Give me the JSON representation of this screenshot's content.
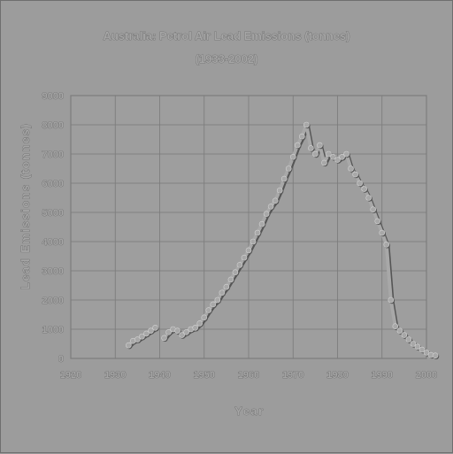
{
  "chart_data": {
    "type": "line",
    "title": "Australia: Petrol Air Lead Emissions (tonnes)",
    "subtitle": "(1933-2002)",
    "xlabel": "Year",
    "ylabel": "Lead Emissions (tonnes)",
    "xlim": [
      1920,
      2000
    ],
    "ylim": [
      0,
      9000
    ],
    "x_ticks": [
      "1920",
      "1930",
      "1940",
      "1950",
      "1960",
      "1970",
      "1980",
      "1990",
      "2000"
    ],
    "y_ticks": [
      "0",
      "1000",
      "2000",
      "3000",
      "4000",
      "5000",
      "6000",
      "7000",
      "8000",
      "9000"
    ],
    "grid": true,
    "legend": "none",
    "series": [
      {
        "segments": [
          {
            "x": [
              1933,
              1934,
              1935,
              1936,
              1937,
              1938,
              1939
            ],
            "y": [
              450,
              600,
              650,
              750,
              850,
              950,
              1050
            ]
          },
          {
            "x": [
              1941,
              1942,
              1943,
              1944,
              1945,
              1946,
              1947,
              1948,
              1949,
              1950,
              1951,
              1952,
              1953,
              1954,
              1955,
              1956,
              1957,
              1958,
              1959,
              1960,
              1961,
              1962,
              1963,
              1964,
              1965,
              1966,
              1967,
              1968,
              1969,
              1970,
              1971,
              1972,
              1973,
              1974,
              1975,
              1976,
              1977,
              1978,
              1979,
              1980,
              1981,
              1982,
              1983,
              1984,
              1985,
              1986,
              1987,
              1988,
              1989,
              1990,
              1991,
              1992,
              1993,
              1994,
              1995,
              1996,
              1997,
              1998,
              1999,
              2000,
              2001,
              2002
            ],
            "y": [
              700,
              900,
              1000,
              950,
              800,
              900,
              1000,
              1050,
              1200,
              1400,
              1650,
              1850,
              2000,
              2250,
              2450,
              2700,
              2950,
              3200,
              3450,
              3700,
              4000,
              4300,
              4600,
              4950,
              5200,
              5400,
              5750,
              6150,
              6500,
              6900,
              7300,
              7600,
              8000,
              7200,
              7000,
              7300,
              6700,
              7000,
              6900,
              6800,
              6900,
              7000,
              6500,
              6300,
              6000,
              5800,
              5500,
              5100,
              4700,
              4300,
              3900,
              2000,
              1100,
              950,
              800,
              650,
              500,
              400,
              300,
              200,
              120,
              100
            ]
          }
        ]
      }
    ],
    "colors": {
      "background": "#9c9c9c",
      "plot_area": "#9e9e9e",
      "line": "#a8a8a8",
      "shadow": "#555555",
      "highlight": "#d2d2d2"
    }
  }
}
